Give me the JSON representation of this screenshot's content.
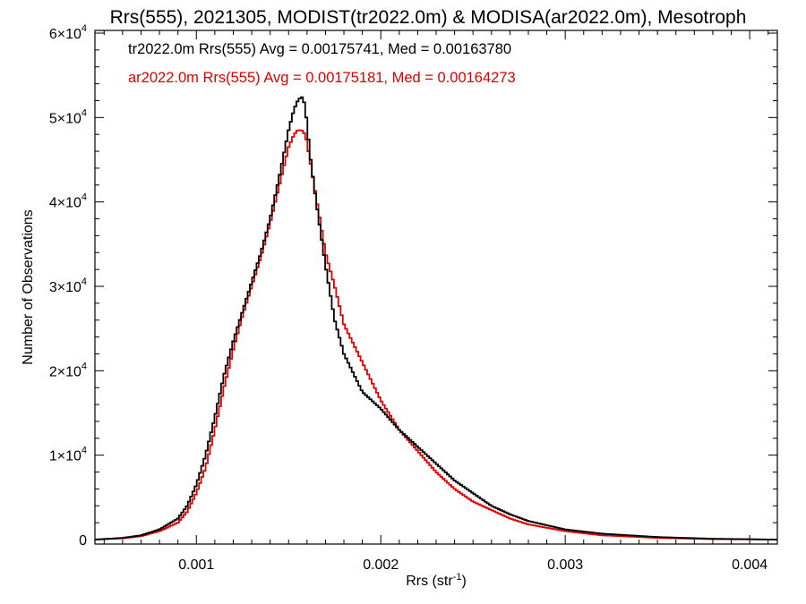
{
  "chart_data": {
    "type": "line",
    "title": "Rrs(555), 2021305, MODIST(tr2022.0m) & MODISA(ar2022.0m), Mesotroph",
    "xlabel": "Rrs (str",
    "xlabel_sup": "-1",
    "xlabel_suffix": ")",
    "ylabel": "Number of Observations",
    "xlim": [
      0.00045,
      0.00415
    ],
    "ylim": [
      0,
      60000
    ],
    "xticks": [
      {
        "value": 0.001,
        "label": "0.001"
      },
      {
        "value": 0.002,
        "label": "0.002"
      },
      {
        "value": 0.003,
        "label": "0.003"
      },
      {
        "value": 0.004,
        "label": "0.004"
      }
    ],
    "yticks": [
      {
        "value": 0,
        "mant": "0",
        "exp": ""
      },
      {
        "value": 10000,
        "mant": "1×10",
        "exp": "4"
      },
      {
        "value": 20000,
        "mant": "2×10",
        "exp": "4"
      },
      {
        "value": 30000,
        "mant": "3×10",
        "exp": "4"
      },
      {
        "value": 40000,
        "mant": "4×10",
        "exp": "4"
      },
      {
        "value": 50000,
        "mant": "5×10",
        "exp": "4"
      },
      {
        "value": 60000,
        "mant": "6×10",
        "exp": "4"
      }
    ],
    "legend_placement": "top-left",
    "series": [
      {
        "label": "tr2022.0m Rrs(555) Avg = 0.00175741, Med = 0.00163780",
        "color": "#000000",
        "x": [
          0.00045,
          0.0006,
          0.0007,
          0.0008,
          0.0009,
          0.00095,
          0.001,
          0.00105,
          0.0011,
          0.00115,
          0.0012,
          0.00125,
          0.0013,
          0.00135,
          0.0014,
          0.00145,
          0.0015,
          0.00153,
          0.00155,
          0.00157,
          0.00159,
          0.0016,
          0.00162,
          0.00165,
          0.0017,
          0.00175,
          0.0018,
          0.0019,
          0.002,
          0.0021,
          0.0022,
          0.0023,
          0.0024,
          0.0025,
          0.0026,
          0.0027,
          0.0028,
          0.003,
          0.0032,
          0.0035,
          0.0038,
          0.00415
        ],
        "y": [
          0,
          200,
          500,
          1200,
          2500,
          4000,
          6500,
          10000,
          14500,
          19500,
          23500,
          27000,
          30500,
          34000,
          38000,
          43000,
          48500,
          51000,
          52000,
          52500,
          51500,
          49000,
          45000,
          40000,
          32500,
          26000,
          22000,
          17500,
          15500,
          13000,
          11000,
          9000,
          7000,
          5500,
          4000,
          3000,
          2200,
          1200,
          700,
          300,
          100,
          0
        ]
      },
      {
        "label": "ar2022.0m Rrs(555) Avg = 0.00175181, Med = 0.00164273",
        "color": "#e00000",
        "x": [
          0.00045,
          0.0006,
          0.0007,
          0.0008,
          0.0009,
          0.00095,
          0.001,
          0.00105,
          0.0011,
          0.00115,
          0.0012,
          0.00125,
          0.0013,
          0.00135,
          0.0014,
          0.00145,
          0.0015,
          0.00153,
          0.00155,
          0.00157,
          0.00159,
          0.0016,
          0.00162,
          0.00165,
          0.0017,
          0.00175,
          0.0018,
          0.0019,
          0.002,
          0.0021,
          0.0022,
          0.0023,
          0.0024,
          0.0025,
          0.0026,
          0.0027,
          0.0028,
          0.003,
          0.0032,
          0.0035,
          0.0038,
          0.00415
        ],
        "y": [
          0,
          150,
          400,
          1000,
          2000,
          3300,
          5500,
          8500,
          13000,
          18000,
          22500,
          26500,
          30000,
          33500,
          37500,
          42000,
          46500,
          48000,
          48500,
          48500,
          48000,
          47000,
          44500,
          40500,
          34000,
          30000,
          25500,
          21000,
          16500,
          13000,
          10500,
          8000,
          6000,
          4500,
          3500,
          2500,
          1800,
          1000,
          500,
          200,
          50,
          0
        ]
      }
    ]
  }
}
